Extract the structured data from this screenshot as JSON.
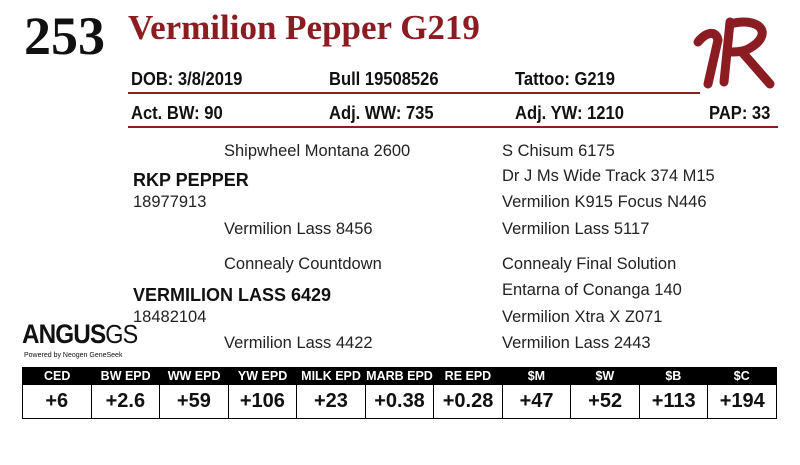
{
  "header": {
    "lot_number": "253",
    "animal_name": "Vermilion Pepper G219",
    "brand_logo": "vr-brand-logo",
    "accent_color": "#8b1c22"
  },
  "info_row1": {
    "dob": "DOB: 3/8/2019",
    "registration": "Bull   19508526",
    "tattoo": "Tattoo:  G219"
  },
  "info_row2": {
    "act_bw": "Act. BW: 90",
    "adj_ww": "Adj. WW: 735",
    "adj_yw": "Adj. YW: 1210",
    "pap": "PAP: 33"
  },
  "pedigree": {
    "sire": {
      "name": "RKP PEPPER",
      "reg": "18977913"
    },
    "sire_sire": "Shipwheel Montana 2600",
    "sire_dam": "Vermilion Lass 8456",
    "dam": {
      "name": "VERMILION LASS 6429",
      "reg": "18482104"
    },
    "dam_sire": "Connealy Countdown",
    "dam_dam": "Vermilion Lass 4422",
    "great_grandparents": [
      "S Chisum 6175",
      "Dr J Ms Wide Track 374 M15",
      "Vermilion K915 Focus N446",
      "Vermilion Lass 5117",
      "Connealy Final Solution",
      "Entarna of Conanga 140",
      "Vermilion Xtra X Z071",
      "Vermilion Lass 2443"
    ]
  },
  "angus_logo": {
    "word": "ANGUS",
    "suffix": "GS",
    "tagline": "Powered by Neogen GeneSeek"
  },
  "epd_table": {
    "headers": [
      "CED",
      "BW EPD",
      "WW EPD",
      "YW EPD",
      "MILK EPD",
      "MARB EPD",
      "RE EPD",
      "$M",
      "$W",
      "$B",
      "$C"
    ],
    "values": [
      "+6",
      "+2.6",
      "+59",
      "+106",
      "+23",
      "+0.38",
      "+0.28",
      "+47",
      "+52",
      "+113",
      "+194"
    ]
  }
}
